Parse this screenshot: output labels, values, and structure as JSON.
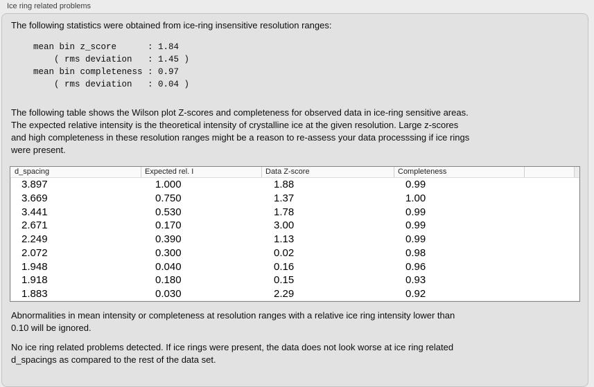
{
  "section": {
    "title": "Ice ring related problems"
  },
  "intro": {
    "text": "The following statistics were obtained from ice-ring insensitive resolution ranges:"
  },
  "stats": {
    "text": "mean bin z_score      : 1.84\n    ( rms deviation   : 1.45 )\nmean bin completeness : 0.97\n    ( rms deviation   : 0.04 )"
  },
  "table_description": {
    "text": "The following table shows the Wilson plot Z-scores and completeness for observed data in ice-ring sensitive areas.\nThe expected relative intensity is the theoretical intensity of crystalline ice at the given resolution. Large z-scores\nand high completeness in these resolution ranges might be a reason to re-assess your data processsing if ice rings\nwere present."
  },
  "table": {
    "columns": [
      "d_spacing",
      "Expected rel. I",
      "Data Z-score",
      "Completeness"
    ],
    "rows": [
      [
        "3.897",
        "1.000",
        "1.88",
        "0.99"
      ],
      [
        "3.669",
        "0.750",
        "1.37",
        "1.00"
      ],
      [
        "3.441",
        "0.530",
        "1.78",
        "0.99"
      ],
      [
        "2.671",
        "0.170",
        "3.00",
        "0.99"
      ],
      [
        "2.249",
        "0.390",
        "1.13",
        "0.99"
      ],
      [
        "2.072",
        "0.300",
        "0.02",
        "0.98"
      ],
      [
        "1.948",
        "0.040",
        "0.16",
        "0.96"
      ],
      [
        "1.918",
        "0.180",
        "0.15",
        "0.93"
      ],
      [
        "1.883",
        "0.030",
        "2.29",
        "0.92"
      ]
    ]
  },
  "notes": {
    "ignore_note": "Abnormalities in mean intensity or completeness at resolution ranges with a relative ice ring intensity lower than\n0.10 will be ignored.",
    "conclusion": "No ice ring related problems detected. If ice rings were present, the data does not look worse at ice ring related\nd_spacings as compared to the rest of the data set."
  },
  "colors": {
    "page_bg": "#ececec",
    "panel_bg": "#e2e2e2",
    "panel_border": "#c3c3c3",
    "table_border": "#858585"
  }
}
